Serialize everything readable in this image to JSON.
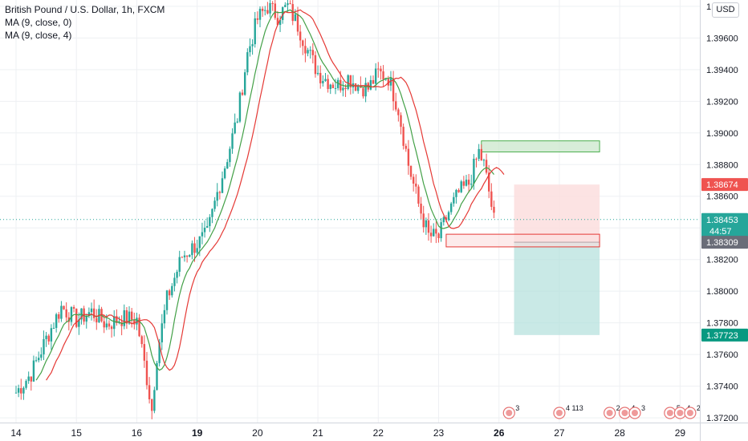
{
  "legend": {
    "title": "British Pound / U.S. Dollar, 1h, FXCM",
    "ma1": "MA (9, close, 0)",
    "ma2": "MA (9, close, 4)"
  },
  "currency_button": "USD",
  "colors": {
    "up": "#26a69a",
    "down": "#ef5350",
    "ma1": "#43a047",
    "ma2": "#e53935",
    "grid": "#eef0f3",
    "current_price_line": "#26a69a",
    "tp_box": "#c8e6c9",
    "sl_box": "#fcdede"
  },
  "chart_data": {
    "type": "candlestick",
    "symbol": "GBPUSD",
    "timeframe": "1h",
    "x_tick_labels": [
      "14",
      "15",
      "16",
      "19",
      "20",
      "21",
      "22",
      "23",
      "26",
      "27",
      "28",
      "29"
    ],
    "x_tick_index": [
      0,
      24,
      48,
      72,
      96,
      120,
      144,
      168,
      192,
      216,
      240,
      264
    ],
    "y_tick_labels": [
      "1.39800",
      "1.39600",
      "1.39400",
      "1.39200",
      "1.39000",
      "1.38800",
      "1.38600",
      "1.38400",
      "1.38200",
      "1.38000",
      "1.37800",
      "1.37600",
      "1.37400",
      "1.37200"
    ],
    "ylim": [
      1.3717,
      1.3984
    ],
    "close_path": [
      [
        0,
        1.3736
      ],
      [
        6,
        1.3748
      ],
      [
        12,
        1.377
      ],
      [
        18,
        1.379
      ],
      [
        24,
        1.3782
      ],
      [
        30,
        1.3787
      ],
      [
        36,
        1.3779
      ],
      [
        42,
        1.3783
      ],
      [
        48,
        1.3782
      ],
      [
        52,
        1.3745
      ],
      [
        54,
        1.3725
      ],
      [
        56,
        1.376
      ],
      [
        60,
        1.3795
      ],
      [
        66,
        1.3822
      ],
      [
        72,
        1.383
      ],
      [
        76,
        1.3836
      ],
      [
        80,
        1.3862
      ],
      [
        84,
        1.3885
      ],
      [
        88,
        1.391
      ],
      [
        92,
        1.395
      ],
      [
        96,
        1.3972
      ],
      [
        100,
        1.398
      ],
      [
        104,
        1.3974
      ],
      [
        108,
        1.398
      ],
      [
        112,
        1.3968
      ],
      [
        116,
        1.3952
      ],
      [
        120,
        1.3938
      ],
      [
        124,
        1.3933
      ],
      [
        128,
        1.393
      ],
      [
        132,
        1.3935
      ],
      [
        136,
        1.393
      ],
      [
        140,
        1.3928
      ],
      [
        144,
        1.3938
      ],
      [
        148,
        1.3935
      ],
      [
        152,
        1.3915
      ],
      [
        156,
        1.388
      ],
      [
        160,
        1.3855
      ],
      [
        164,
        1.3835
      ],
      [
        168,
        1.3834
      ],
      [
        172,
        1.385
      ],
      [
        176,
        1.3862
      ],
      [
        180,
        1.3868
      ],
      [
        184,
        1.3888
      ],
      [
        186,
        1.388
      ],
      [
        188,
        1.3863
      ],
      [
        190,
        1.3845
      ]
    ],
    "series": [
      {
        "name": "MA (9, close, 0)",
        "type": "line",
        "color": "#43a047"
      },
      {
        "name": "MA (9, close, 4)",
        "type": "line",
        "color": "#e53935"
      }
    ],
    "price_labels": [
      {
        "value": 1.38674,
        "text": "1.38674",
        "color": "#ef5350"
      },
      {
        "value": 1.38453,
        "text": "1.38453",
        "sub": "44:57",
        "color": "#26a69a"
      },
      {
        "value": 1.38309,
        "text": "1.38309",
        "color": "#6a6d78"
      },
      {
        "value": 1.37723,
        "text": "1.37723",
        "color": "#089981"
      }
    ],
    "annotations": {
      "tp_zone": {
        "x_start": 185,
        "x_end": 232,
        "top": 1.3895,
        "bottom": 1.3888
      },
      "entry_zone": {
        "x_start": 171,
        "x_end": 232,
        "top": 1.3836,
        "bottom": 1.3828
      },
      "short_position": {
        "x_start": 198,
        "x_end": 232,
        "stop": 1.38674,
        "entry": 1.38309,
        "target": 1.37723
      }
    },
    "events": [
      {
        "x_index": 196,
        "text": "3"
      },
      {
        "x_index": 216,
        "text": "4 113"
      },
      {
        "x_index": 236,
        "text": "2"
      },
      {
        "x_index": 242,
        "text": "4"
      },
      {
        "x_index": 246,
        "text": "3"
      },
      {
        "x_index": 260,
        "text": "5"
      },
      {
        "x_index": 264,
        "text": "4"
      },
      {
        "x_index": 268,
        "text": "2"
      }
    ]
  }
}
